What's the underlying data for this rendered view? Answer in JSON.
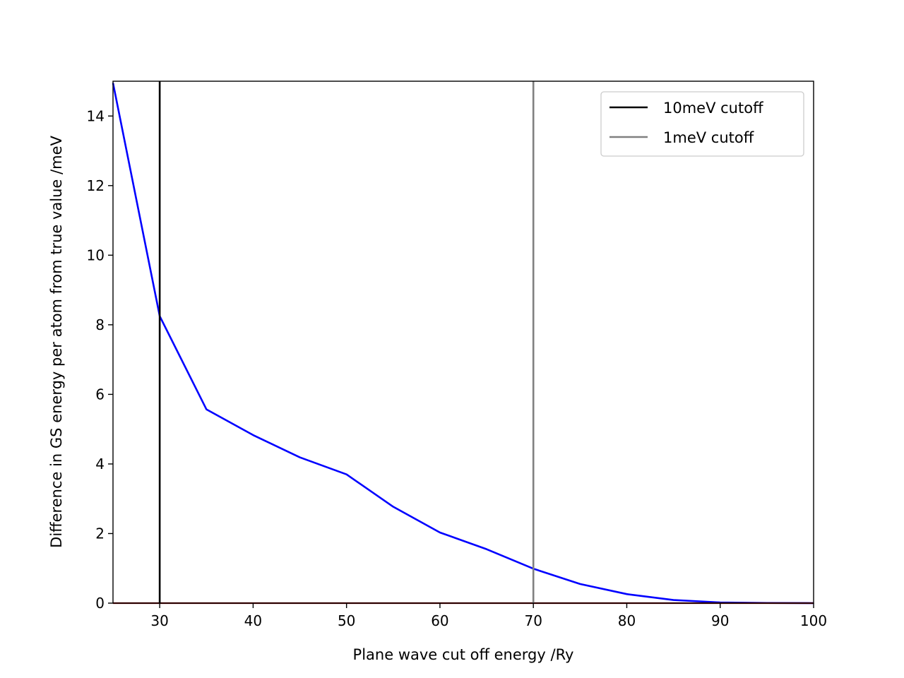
{
  "chart_data": {
    "type": "line",
    "xlabel": "Plane wave cut off energy /Ry",
    "ylabel": "Difference in GS energy per atom from true value /meV",
    "xlim": [
      25,
      100
    ],
    "ylim": [
      0,
      15
    ],
    "xticks": [
      30,
      40,
      50,
      60,
      70,
      80,
      90,
      100
    ],
    "yticks": [
      0,
      2,
      4,
      6,
      8,
      10,
      12,
      14
    ],
    "grid": false,
    "legend_position": "top-right",
    "series": [
      {
        "name": "",
        "color": "#0000ff",
        "x": [
          25,
          30,
          35,
          40,
          45,
          50,
          55,
          60,
          65,
          70,
          75,
          80,
          85,
          90,
          95,
          100
        ],
        "y": [
          14.95,
          8.25,
          5.57,
          4.83,
          4.19,
          3.7,
          2.77,
          2.03,
          1.55,
          0.99,
          0.55,
          0.26,
          0.09,
          0.02,
          0.005,
          0.0
        ]
      },
      {
        "name": "",
        "color": "#8b0000",
        "x": [
          25,
          100
        ],
        "y": [
          0,
          0
        ]
      }
    ],
    "vlines": [
      {
        "name": "10meV cutoff",
        "x": 30,
        "color": "#000000"
      },
      {
        "name": "1meV cutoff",
        "x": 70,
        "color": "#808080"
      }
    ]
  }
}
